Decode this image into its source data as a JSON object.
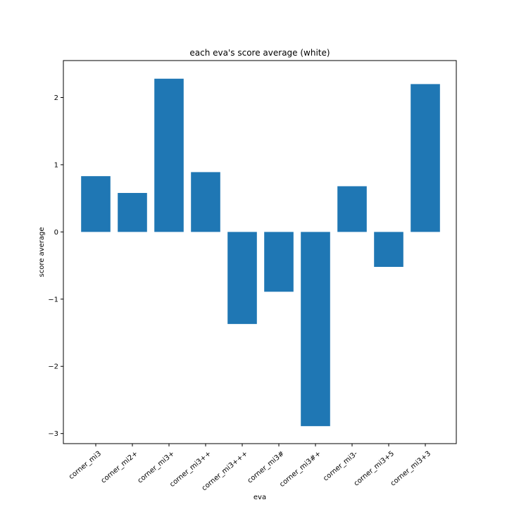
{
  "chart_data": {
    "type": "bar",
    "title": "each eva's score average (white)",
    "xlabel": "eva",
    "ylabel": "score average",
    "categories": [
      "corner_mi3",
      "corner_mi2+",
      "corner_mi3+",
      "corner_mi3++",
      "corner_mi3+++",
      "corner_mi3#",
      "corner_mi3#+",
      "corner_mi3-",
      "corner_mi3+5",
      "corner_mi3+3"
    ],
    "values": [
      0.83,
      0.58,
      2.28,
      0.89,
      -1.37,
      -0.89,
      -2.89,
      0.68,
      -0.52,
      2.2
    ],
    "ylim": [
      -3.15,
      2.55
    ],
    "yticks": [
      -3,
      -2,
      -1,
      0,
      1,
      2
    ],
    "ytick_labels": [
      "−3",
      "−2",
      "−1",
      "0",
      "1",
      "2"
    ],
    "bar_color": "#1f77b4",
    "grid": false,
    "legend": "none"
  }
}
